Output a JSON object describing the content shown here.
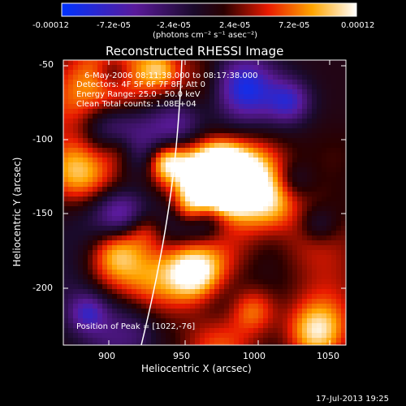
{
  "colorbar": {
    "tick_labels": [
      "-0.00012",
      "-7.2e-05",
      "-2.4e-05",
      "2.4e-05",
      "7.2e-05",
      "0.00012"
    ],
    "range": [
      -0.00012,
      0.00012
    ],
    "unit_label": "(photons cm⁻² s⁻¹ asec⁻²)",
    "colormap": "blue-purple-black-red-orange-yellow-white"
  },
  "plot": {
    "title": "Reconstructed RHESSI Image",
    "xlabel": "Heliocentric X (arcsec)",
    "ylabel": "Heliocentric Y (arcsec)",
    "x_ticks": [
      "900",
      "950",
      "1000",
      "1050"
    ],
    "y_ticks": [
      "-50",
      "-100",
      "-150",
      "-200"
    ],
    "xlim": [
      865,
      1057
    ],
    "ylim": [
      -237,
      -47
    ]
  },
  "annotations": {
    "time_range": "6-May-2006 08:11:38.000 to 08:17:38.000",
    "detectors": "Detectors: 4F 5F 6F 7F 8F, Att 0",
    "energy": "Energy Range: 25.0 - 50.0 keV",
    "clean": "Clean     Total counts: 1.08E+04",
    "peak": "Position of Peak = [1022,-76]"
  },
  "footer": {
    "timestamp": "17-Jul-2013 19:25"
  }
}
